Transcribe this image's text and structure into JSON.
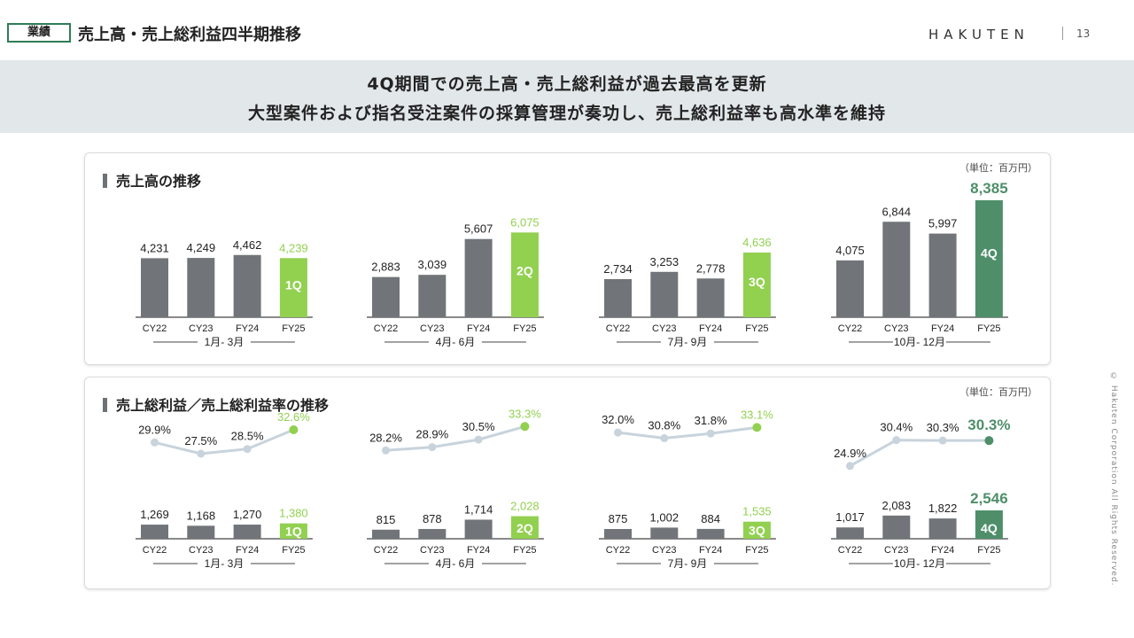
{
  "header": {
    "section_tag": "業績",
    "title": "売上高・売上総利益四半期推移",
    "logo": "HAKUTEN",
    "page_number": "13"
  },
  "banner": {
    "line1": "4Q期間での売上高・売上総利益が過去最高を更新",
    "line2": "大型案件および指名受注案件の採算管理が奏功し、売上総利益率も高水準を維持"
  },
  "copyright": "© Hakuten Corporation All Rights Reserved.",
  "colors": {
    "gray_bar": "#717579",
    "light_green": "#92d050",
    "dark_green": "#4e8f6a",
    "rate_line": "#c8d3dc"
  },
  "chart_data": [
    {
      "type": "bar",
      "title": "売上高の推移",
      "unit": "（単位：百万円）",
      "groups": [
        {
          "period": "1月- 3月",
          "categories": [
            "CY22",
            "CY23",
            "FY24",
            "FY25"
          ],
          "values": [
            4231,
            4249,
            4462,
            4239
          ],
          "labels": [
            "4,231",
            "4,249",
            "4,462",
            "4,239"
          ],
          "quarter": "1Q"
        },
        {
          "period": "4月- 6月",
          "categories": [
            "CY22",
            "CY23",
            "FY24",
            "FY25"
          ],
          "values": [
            2883,
            3039,
            5607,
            6075
          ],
          "labels": [
            "2,883",
            "3,039",
            "5,607",
            "6,075"
          ],
          "quarter": "2Q"
        },
        {
          "period": "7月- 9月",
          "categories": [
            "CY22",
            "CY23",
            "FY24",
            "FY25"
          ],
          "values": [
            2734,
            3253,
            2778,
            4636
          ],
          "labels": [
            "2,734",
            "3,253",
            "2,778",
            "4,636"
          ],
          "quarter": "3Q"
        },
        {
          "period": "10月- 12月",
          "categories": [
            "CY22",
            "CY23",
            "FY24",
            "FY25"
          ],
          "values": [
            4075,
            6844,
            5997,
            8385
          ],
          "labels": [
            "4,075",
            "6,844",
            "5,997",
            "8,385"
          ],
          "quarter": "4Q"
        }
      ]
    },
    {
      "type": "bar+line",
      "title": "売上総利益／売上総利益率の推移",
      "unit": "（単位：百万円）",
      "groups": [
        {
          "period": "1月- 3月",
          "categories": [
            "CY22",
            "CY23",
            "FY24",
            "FY25"
          ],
          "values": [
            1269,
            1168,
            1270,
            1380
          ],
          "labels": [
            "1,269",
            "1,168",
            "1,270",
            "1,380"
          ],
          "rates": [
            29.9,
            27.5,
            28.5,
            32.6
          ],
          "rate_labels": [
            "29.9%",
            "27.5%",
            "28.5%",
            "32.6%"
          ],
          "quarter": "1Q"
        },
        {
          "period": "4月- 6月",
          "categories": [
            "CY22",
            "CY23",
            "FY24",
            "FY25"
          ],
          "values": [
            815,
            878,
            1714,
            2028
          ],
          "labels": [
            "815",
            "878",
            "1,714",
            "2,028"
          ],
          "rates": [
            28.2,
            28.9,
            30.5,
            33.3
          ],
          "rate_labels": [
            "28.2%",
            "28.9%",
            "30.5%",
            "33.3%"
          ],
          "quarter": "2Q"
        },
        {
          "period": "7月- 9月",
          "categories": [
            "CY22",
            "CY23",
            "FY24",
            "FY25"
          ],
          "values": [
            875,
            1002,
            884,
            1535
          ],
          "labels": [
            "875",
            "1,002",
            "884",
            "1,535"
          ],
          "rates": [
            32.0,
            30.8,
            31.8,
            33.1
          ],
          "rate_labels": [
            "32.0%",
            "30.8%",
            "31.8%",
            "33.1%"
          ],
          "quarter": "3Q"
        },
        {
          "period": "10月- 12月",
          "categories": [
            "CY22",
            "CY23",
            "FY24",
            "FY25"
          ],
          "values": [
            1017,
            2083,
            1822,
            2546
          ],
          "labels": [
            "1,017",
            "2,083",
            "1,822",
            "2,546"
          ],
          "rates": [
            24.9,
            30.4,
            30.3,
            30.3
          ],
          "rate_labels": [
            "24.9%",
            "30.4%",
            "30.3%",
            "30.3%"
          ],
          "quarter": "4Q"
        }
      ]
    }
  ]
}
